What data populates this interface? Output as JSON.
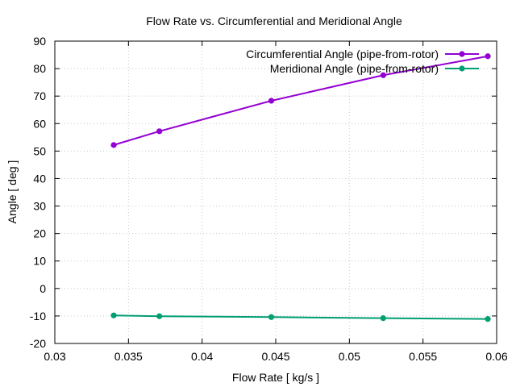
{
  "chart_data": {
    "type": "line",
    "title": "Flow Rate vs. Circumferential and Meridional Angle",
    "xlabel": "Flow Rate [ kg/s ]",
    "ylabel": "Angle [ deg ]",
    "xlim": [
      0.03,
      0.06
    ],
    "ylim": [
      -20,
      90
    ],
    "xticks": [
      0.03,
      0.035,
      0.04,
      0.045,
      0.05,
      0.055,
      0.06
    ],
    "xtick_labels": [
      "0.03",
      "0.035",
      "0.04",
      "0.045",
      "0.05",
      "0.055",
      "0.06"
    ],
    "yticks": [
      -20,
      -10,
      0,
      10,
      20,
      30,
      40,
      50,
      60,
      70,
      80,
      90
    ],
    "ytick_labels": [
      "-20",
      "-10",
      "0",
      "10",
      "20",
      "30",
      "40",
      "50",
      "60",
      "70",
      "80",
      "90"
    ],
    "grid": true,
    "legend_position": "top-right",
    "series": [
      {
        "name": "Circumferential Angle (pipe-from-rotor)",
        "color": "#9400d3",
        "x": [
          0.034,
          0.0371,
          0.0447,
          0.0523,
          0.0594
        ],
        "y": [
          52.2,
          57.2,
          68.3,
          77.6,
          84.5
        ]
      },
      {
        "name": "Meridional Angle (pipe-from-rotor)",
        "color": "#009e73",
        "x": [
          0.034,
          0.0371,
          0.0447,
          0.0523,
          0.0594
        ],
        "y": [
          -9.8,
          -10.1,
          -10.4,
          -10.8,
          -11.1
        ]
      }
    ]
  }
}
